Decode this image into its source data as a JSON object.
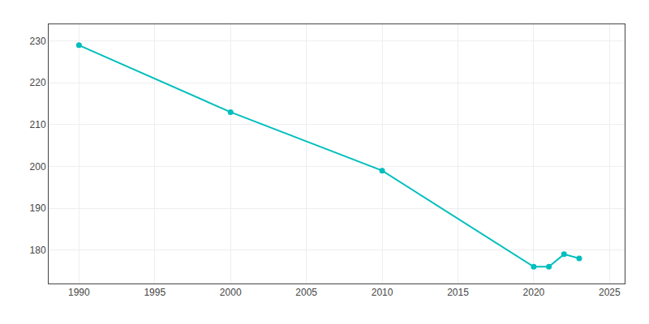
{
  "chart_data": {
    "type": "line",
    "x": [
      1990,
      2000,
      2010,
      2020,
      2021,
      2022,
      2023
    ],
    "values": [
      229,
      213,
      199,
      176,
      176,
      179,
      178
    ],
    "color": "#00BEBE",
    "marker": "circle",
    "xlim": [
      1988,
      2026
    ],
    "ylim": [
      172,
      234
    ],
    "xticks": [
      1990,
      1995,
      2000,
      2005,
      2010,
      2015,
      2020,
      2025
    ],
    "yticks": [
      180,
      190,
      200,
      210,
      220,
      230
    ],
    "grid": true
  }
}
